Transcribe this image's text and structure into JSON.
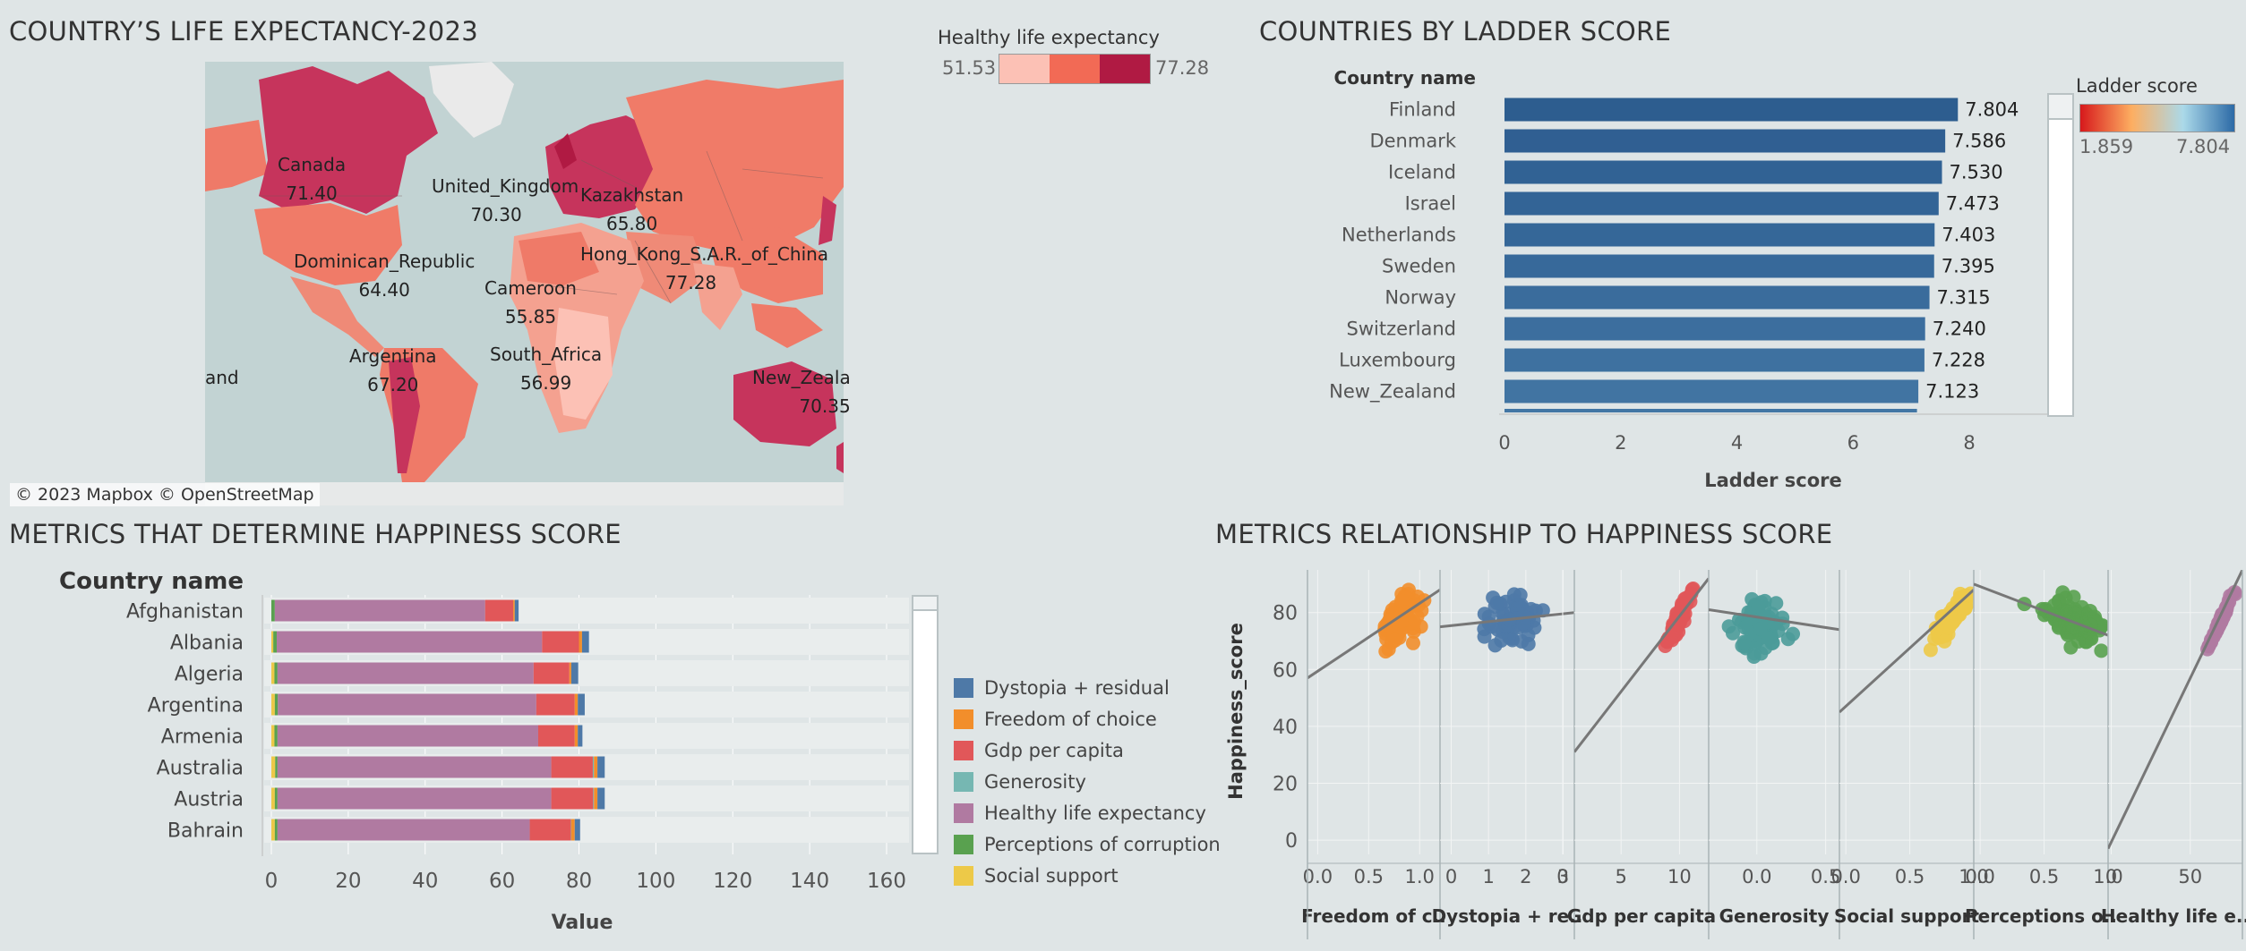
{
  "titles": {
    "map": "COUNTRY’S LIFE EXPECTANCY-2023",
    "ladder": "COUNTRIES BY LADDER SCORE",
    "metrics": "METRICS THAT DETERMINE HAPPINESS SCORE",
    "relationship": "METRICS RELATIONSHIP TO HAPPINESS SCORE"
  },
  "map_legend": {
    "title": "Healthy life expectancy",
    "min": "51.53",
    "max": "77.28",
    "colors": [
      "#fcc1b5",
      "#f26a55",
      "#b01a43"
    ]
  },
  "map_attribution": "© 2023 Mapbox © OpenStreetMap",
  "map_labels": [
    {
      "name": "Canada",
      "value": "71.40"
    },
    {
      "name": "United_Kingdom",
      "value": "70.30"
    },
    {
      "name": "Kazakhstan",
      "value": "65.80"
    },
    {
      "name": "Dominican_Republic",
      "value": "64.40"
    },
    {
      "name": "Hong_Kong_S.A.R._of_China",
      "value": "77.28"
    },
    {
      "name": "Cameroon",
      "value": "55.85"
    },
    {
      "name": "Argentina",
      "value": "67.20"
    },
    {
      "name": "South_Africa",
      "value": "56.99"
    },
    {
      "name": "and",
      "value": ""
    },
    {
      "name": "New_Zeala",
      "value": "70.35"
    }
  ],
  "ladder_legend": {
    "title": "Ladder score",
    "min": "1.859",
    "max": "7.804",
    "colors": [
      "#d7191c",
      "#fdae61",
      "#abd9e9",
      "#2c6aa6"
    ]
  },
  "metrics_legend": [
    {
      "name": "Dystopia + residual",
      "color": "#4e79a7"
    },
    {
      "name": "Freedom of choice",
      "color": "#f28e2b"
    },
    {
      "name": "Gdp per capita",
      "color": "#e15759"
    },
    {
      "name": "Generosity",
      "color": "#76b7b2"
    },
    {
      "name": "Healthy life expectancy",
      "color": "#b07aa1"
    },
    {
      "name": "Perceptions of corruption",
      "color": "#59a14f"
    },
    {
      "name": "Social support",
      "color": "#edc948"
    }
  ],
  "chart_data": [
    {
      "type": "bar",
      "orientation": "horizontal",
      "title": "COUNTRIES BY LADDER SCORE",
      "row_header": "Country name",
      "xlabel": "Ladder score",
      "xlim": [
        0,
        9
      ],
      "xticks": [
        0,
        2,
        4,
        6,
        8
      ],
      "categories": [
        "Finland",
        "Denmark",
        "Iceland",
        "Israel",
        "Netherlands",
        "Sweden",
        "Norway",
        "Switzerland",
        "Luxembourg",
        "New_Zealand"
      ],
      "values": [
        7.804,
        7.586,
        7.53,
        7.473,
        7.403,
        7.395,
        7.315,
        7.24,
        7.228,
        7.123
      ],
      "labels": [
        "7.804",
        "7.586",
        "7.530",
        "7.473",
        "7.403",
        "7.395",
        "7.315",
        "7.240",
        "7.228",
        "7.123"
      ],
      "colors": [
        "#2d5d8f",
        "#305f92",
        "#316294",
        "#336496",
        "#356798",
        "#37699a",
        "#3a6c9c",
        "#3c6e9e",
        "#3e71a0",
        "#4174a2"
      ]
    },
    {
      "type": "bar",
      "orientation": "horizontal",
      "stacked": true,
      "title": "METRICS THAT DETERMINE HAPPINESS SCORE",
      "row_header": "Country name",
      "xlabel": "Value",
      "xlim": [
        0,
        165
      ],
      "xticks": [
        0,
        20,
        40,
        60,
        80,
        100,
        120,
        140,
        160
      ],
      "categories": [
        "Afghanistan",
        "Albania",
        "Algeria",
        "Argentina",
        "Armenia",
        "Australia",
        "Austria",
        "Bahrain"
      ],
      "series": [
        {
          "name": "Social support",
          "color": "#edc948",
          "values": [
            0.0,
            0.5,
            0.8,
            0.9,
            0.8,
            1.0,
            0.9,
            0.9
          ]
        },
        {
          "name": "Perceptions of corruption",
          "color": "#59a14f",
          "values": [
            0.9,
            0.9,
            0.8,
            0.8,
            0.8,
            0.6,
            0.7,
            0.7
          ]
        },
        {
          "name": "Healthy life expectancy",
          "color": "#b07aa1",
          "values": [
            54.7,
            69.0,
            66.6,
            67.2,
            67.8,
            71.2,
            71.2,
            65.6
          ]
        },
        {
          "name": "Gdp per capita",
          "color": "#e15759",
          "values": [
            7.3,
            9.6,
            9.3,
            10.0,
            9.5,
            10.8,
            10.9,
            10.7
          ]
        },
        {
          "name": "Generosity",
          "color": "#76b7b2",
          "values": [
            0.0,
            0.0,
            0.0,
            0.0,
            0.0,
            0.3,
            0.2,
            0.1
          ]
        },
        {
          "name": "Freedom of choice",
          "color": "#f28e2b",
          "values": [
            0.4,
            0.8,
            0.5,
            0.8,
            0.8,
            0.9,
            0.9,
            0.9
          ]
        },
        {
          "name": "Dystopia + residual",
          "color": "#4e79a7",
          "values": [
            1.0,
            1.8,
            1.8,
            1.8,
            1.2,
            1.9,
            1.9,
            1.4
          ]
        }
      ]
    },
    {
      "type": "scatter",
      "title": "METRICS RELATIONSHIP TO HAPPINESS SCORE",
      "ylabel": "Happiness_score",
      "ylim": [
        -5,
        95
      ],
      "yticks": [
        0,
        20,
        40,
        60,
        80
      ],
      "panels": [
        {
          "name": "Freedom of c..",
          "color": "#f28e2b",
          "xlim": [
            -0.1,
            1.2
          ],
          "xticks": [
            "0.0",
            "0.5",
            "1.0"
          ],
          "xtick_values": [
            0,
            0.5,
            1.0
          ],
          "trend": [
            [
              -0.1,
              57
            ],
            [
              1.2,
              88
            ]
          ],
          "cx": 0.82,
          "sx": 0.12,
          "cy": 78,
          "sy": 6,
          "n": 85,
          "corr": 0.6
        },
        {
          "name": "Dystopia + re..",
          "color": "#4e79a7",
          "xlim": [
            -0.3,
            3.3
          ],
          "xticks": [
            "0",
            "1",
            "2",
            "3"
          ],
          "xtick_values": [
            0,
            1,
            2,
            3
          ],
          "trend": [
            [
              -0.3,
              75
            ],
            [
              3.3,
              80
            ]
          ],
          "cx": 1.6,
          "sx": 0.55,
          "cy": 77,
          "sy": 5.5,
          "n": 70,
          "corr": 0.1
        },
        {
          "name": "Gdp per capita",
          "color": "#e15759",
          "xlim": [
            1,
            12.5
          ],
          "xticks": [
            "0",
            "5",
            "10"
          ],
          "xtick_values": [
            0,
            5,
            10
          ],
          "trend": [
            [
              1,
              31
            ],
            [
              12.5,
              92
            ]
          ],
          "cx": 10.0,
          "sx": 0.7,
          "cy": 78,
          "sy": 6,
          "n": 85,
          "corr": 0.92
        },
        {
          "name": "Generosity",
          "color": "#4b9b99",
          "xlim": [
            -0.35,
            0.6
          ],
          "xticks": [
            "0.0",
            "0.5"
          ],
          "xtick_values": [
            0,
            0.5
          ],
          "trend": [
            [
              -0.35,
              81
            ],
            [
              0.6,
              74
            ]
          ],
          "cx": 0.02,
          "sx": 0.12,
          "cy": 75,
          "sy": 6,
          "n": 95,
          "corr": -0.1
        },
        {
          "name": "Social support",
          "color": "#edc948",
          "xlim": [
            -0.05,
            1.0
          ],
          "xticks": [
            "0.0",
            "0.5",
            "1.0"
          ],
          "xtick_values": [
            0,
            0.5,
            1.0
          ],
          "trend": [
            [
              -0.05,
              45
            ],
            [
              1.0,
              88
            ]
          ],
          "cx": 0.82,
          "sx": 0.09,
          "cy": 78,
          "sy": 6,
          "n": 85,
          "corr": 0.85
        },
        {
          "name": "Perceptions o..",
          "color": "#59a14f",
          "xlim": [
            -0.05,
            1.0
          ],
          "xticks": [
            "0.0",
            "0.5",
            "1.0"
          ],
          "xtick_values": [
            0,
            0.5,
            1.0
          ],
          "trend": [
            [
              -0.05,
              90
            ],
            [
              1.0,
              72
            ]
          ],
          "cx": 0.7,
          "sx": 0.17,
          "cy": 78,
          "sy": 6,
          "n": 90,
          "corr": -0.45
        },
        {
          "name": "Healthy life e..",
          "color": "#b07aa1",
          "xlim": [
            -2,
            83
          ],
          "xticks": [
            "0",
            "50"
          ],
          "xtick_values": [
            0,
            50
          ],
          "trend": [
            [
              -2,
              -3
            ],
            [
              83,
              95
            ]
          ],
          "cx": 70,
          "sx": 5,
          "cy": 78,
          "sy": 6,
          "n": 90,
          "corr": 0.99
        }
      ]
    }
  ]
}
